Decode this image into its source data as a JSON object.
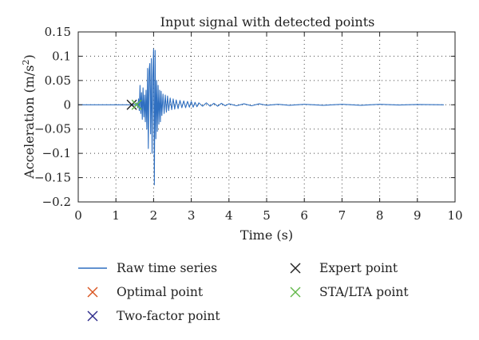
{
  "chart_data": {
    "type": "line",
    "title": "Input signal with detected points",
    "xlabel": "Time (s)",
    "ylabel_main": "Acceleration (m/s",
    "ylabel_sup": "2",
    "ylabel_close": ")",
    "xlim": [
      0,
      10
    ],
    "ylim": [
      -0.2,
      0.15
    ],
    "xticks": [
      0,
      1,
      2,
      3,
      4,
      5,
      6,
      7,
      8,
      9,
      10
    ],
    "xtick_labels": [
      "0",
      "1",
      "2",
      "3",
      "4",
      "5",
      "6",
      "7",
      "8",
      "9",
      "10"
    ],
    "yticks": [
      0.15,
      0.1,
      0.05,
      0,
      -0.05,
      -0.1,
      -0.15,
      -0.2
    ],
    "ytick_labels": [
      "0.15",
      "0.1",
      "0.05",
      "0",
      "−0.05",
      "−0.1",
      "−0.15",
      "−0.2"
    ],
    "grid": "dotted",
    "signal_end_time": 9.7,
    "series": [
      {
        "name": "Raw time series",
        "color": "#2f6fc0",
        "x": [
          1.52,
          1.56,
          1.58,
          1.6,
          1.62,
          1.64,
          1.66,
          1.68,
          1.7,
          1.72,
          1.74,
          1.76,
          1.78,
          1.8,
          1.82,
          1.84,
          1.86,
          1.88,
          1.9,
          1.92,
          1.94,
          1.96,
          1.98,
          2.0,
          2.02,
          2.04,
          2.06,
          2.08,
          2.1,
          2.12,
          2.14,
          2.16,
          2.18,
          2.2,
          2.22,
          2.25,
          2.28,
          2.31,
          2.34,
          2.37,
          2.4,
          2.44,
          2.48,
          2.52,
          2.56,
          2.6,
          2.65,
          2.7,
          2.75,
          2.8,
          2.85,
          2.9,
          2.95,
          3.0,
          3.05,
          3.1,
          3.15,
          3.2,
          3.3,
          3.4,
          3.5,
          3.6,
          3.7,
          3.8,
          3.9,
          4.0,
          4.2,
          4.4,
          4.6,
          4.8,
          5.0,
          5.3,
          5.6,
          6.0,
          6.5,
          7.0,
          7.5,
          8.0,
          8.5,
          9.0,
          9.7
        ],
        "y": [
          0.0,
          0.004,
          -0.006,
          0.012,
          -0.012,
          0.04,
          -0.018,
          0.025,
          -0.03,
          0.035,
          -0.025,
          0.02,
          -0.035,
          0.03,
          -0.05,
          0.075,
          -0.09,
          0.07,
          0.085,
          -0.06,
          0.095,
          -0.1,
          0.06,
          0.115,
          -0.165,
          0.112,
          -0.07,
          0.05,
          -0.055,
          0.04,
          -0.04,
          0.03,
          -0.035,
          0.028,
          -0.022,
          0.022,
          -0.018,
          0.02,
          -0.015,
          0.018,
          -0.012,
          0.014,
          -0.01,
          0.012,
          -0.009,
          0.01,
          -0.008,
          0.009,
          -0.006,
          0.008,
          -0.006,
          0.007,
          -0.005,
          0.007,
          -0.005,
          0.005,
          -0.004,
          0.004,
          -0.003,
          0.004,
          -0.003,
          0.003,
          -0.003,
          0.003,
          -0.002,
          0.002,
          -0.002,
          0.002,
          -0.002,
          0.002,
          -0.001,
          0.001,
          -0.001,
          0.001,
          -0.001,
          0.001,
          -0.001,
          0.001,
          -0.0005,
          0.0005,
          0.0
        ]
      }
    ],
    "markers": [
      {
        "name": "Optimal point",
        "color": "#d9541f",
        "x": null,
        "y": null
      },
      {
        "name": "Two-factor point",
        "color": "#2c2a8a",
        "x": null,
        "y": null
      },
      {
        "name": "Expert point",
        "color": "#222222",
        "x": 1.42,
        "y": 0.0
      },
      {
        "name": "STA/LTA point",
        "color": "#63b84a",
        "x": 1.55,
        "y": 0.0
      }
    ],
    "legend": {
      "placement": "below",
      "entries": [
        {
          "label": "Raw time series",
          "kind": "line",
          "color": "#2f6fc0"
        },
        {
          "label": "Expert point",
          "kind": "cross",
          "color": "#222222"
        },
        {
          "label": "Optimal point",
          "kind": "cross",
          "color": "#d9541f"
        },
        {
          "label": "STA/LTA point",
          "kind": "cross",
          "color": "#63b84a"
        },
        {
          "label": "Two-factor point",
          "kind": "cross",
          "color": "#2c2a8a"
        }
      ]
    }
  }
}
